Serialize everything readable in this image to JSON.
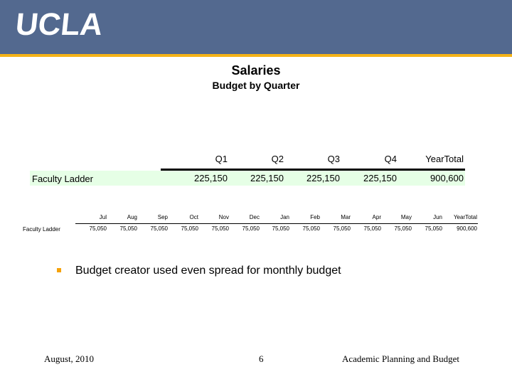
{
  "header": {
    "logo_text": "UCLA",
    "bar_color": "#53698f",
    "band_color": "#f5b317"
  },
  "slide": {
    "title": "Salaries",
    "subtitle": "Budget by Quarter"
  },
  "quarterly_table": {
    "columns": [
      "Q1",
      "Q2",
      "Q3",
      "Q4",
      "YearTotal"
    ],
    "row": {
      "label": "Faculty Ladder",
      "values": [
        "225,150",
        "225,150",
        "225,150",
        "225,150",
        "900,600"
      ]
    }
  },
  "monthly_table": {
    "columns": [
      "Jul",
      "Aug",
      "Sep",
      "Oct",
      "Nov",
      "Dec",
      "Jan",
      "Feb",
      "Mar",
      "Apr",
      "May",
      "Jun",
      "YearTotal"
    ],
    "row": {
      "label": "Faculty Ladder",
      "values": [
        "75,050",
        "75,050",
        "75,050",
        "75,050",
        "75,050",
        "75,050",
        "75,050",
        "75,050",
        "75,050",
        "75,050",
        "75,050",
        "75,050",
        "900,600"
      ]
    }
  },
  "bullets": [
    "Budget creator used even spread for monthly budget"
  ],
  "footer": {
    "date": "August, 2010",
    "page": "6",
    "org": "Academic Planning and Budget"
  }
}
